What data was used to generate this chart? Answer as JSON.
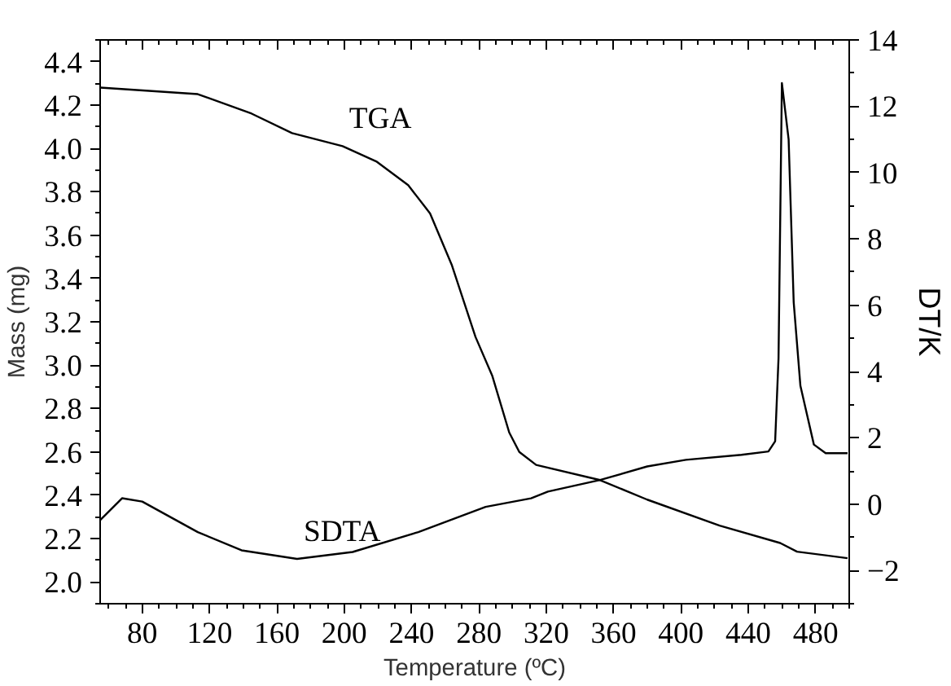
{
  "chart_data": {
    "type": "line",
    "xlabel": "Temperature (ºC)",
    "ylabel": "Mass (mg)",
    "y2label": "DT/K",
    "xlim": [
      55,
      500
    ],
    "xticks": [
      80,
      120,
      160,
      200,
      240,
      280,
      320,
      360,
      400,
      440,
      480
    ],
    "ylim": [
      1.9,
      4.5
    ],
    "yticks": [
      {
        "value": 2.0,
        "label": "2.0"
      },
      2.2,
      2.4,
      2.6,
      2.8,
      {
        "value": 3.0,
        "label": "3.0"
      },
      3.2,
      3.4,
      3.6,
      3.8,
      {
        "value": 4.0,
        "label": "4.0"
      },
      4.2,
      4.4
    ],
    "y2lim": [
      -3,
      14
    ],
    "y2ticks": [
      -2,
      0,
      2,
      4,
      6,
      8,
      10,
      12,
      14
    ],
    "grid": false,
    "marker": "none",
    "line_style": "solid",
    "series": [
      {
        "name": "TGA",
        "color": "#000000",
        "x": [
          55,
          113,
          145,
          169,
          199,
          219,
          238,
          251,
          264,
          278,
          288,
          298,
          304,
          314,
          352,
          380,
          423,
          459,
          469,
          499
        ],
        "values": [
          4.28,
          4.25,
          4.16,
          4.07,
          4.01,
          3.94,
          3.83,
          3.7,
          3.46,
          3.13,
          2.95,
          2.69,
          2.6,
          2.54,
          2.47,
          2.38,
          2.26,
          2.18,
          2.14,
          2.11
        ]
      },
      {
        "name": "SDTA",
        "color": "#000000",
        "axis": "y2",
        "x": [
          55,
          68,
          80,
          113,
          139,
          172,
          205,
          244,
          284,
          311,
          321,
          352,
          380,
          403,
          436,
          452,
          456,
          458,
          460,
          464,
          467,
          471,
          479,
          486,
          499
        ],
        "values": [
          -0.48,
          0.18,
          0.08,
          -0.84,
          -1.39,
          -1.65,
          -1.44,
          -0.84,
          -0.08,
          0.18,
          0.38,
          0.73,
          1.14,
          1.34,
          1.49,
          1.59,
          1.9,
          4.4,
          12.7,
          11.0,
          6.1,
          3.57,
          1.8,
          1.54,
          1.54
        ]
      }
    ]
  }
}
